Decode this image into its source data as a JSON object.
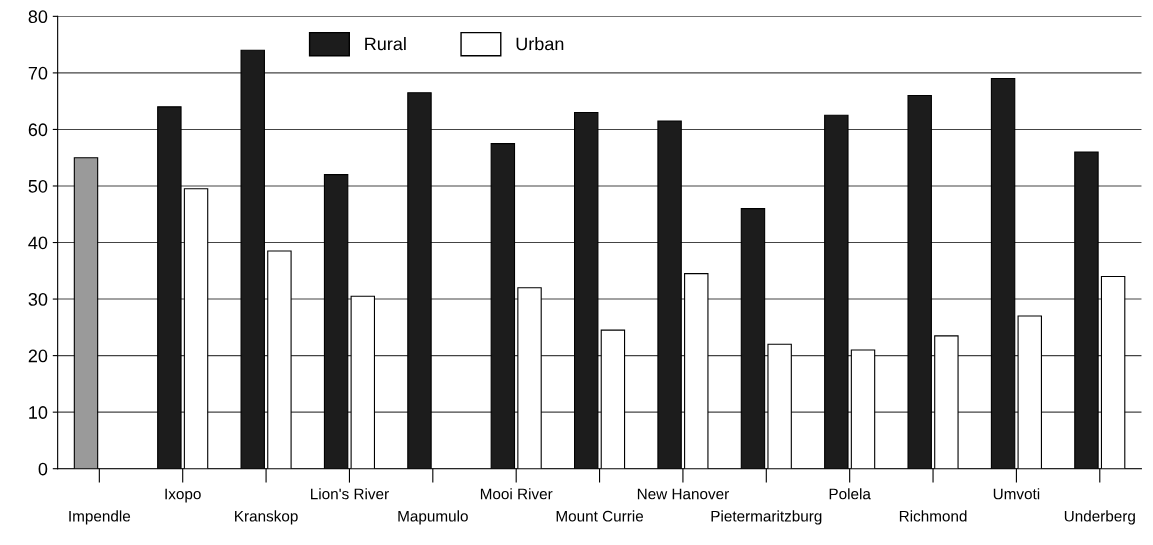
{
  "chart_data": {
    "type": "bar",
    "categories": [
      "Impendle",
      "Ixopo",
      "Kranskop",
      "Lion's River",
      "Mapumulo",
      "Mooi River",
      "Mount Currie",
      "New Hanover",
      "Pietermaritzburg",
      "Polela",
      "Richmond",
      "Umvoti",
      "Underberg"
    ],
    "series": [
      {
        "name": "Rural",
        "color": "#1c1c1c",
        "colors": [
          "#9a9a9a",
          "#1c1c1c",
          "#1c1c1c",
          "#1c1c1c",
          "#1c1c1c",
          "#1c1c1c",
          "#1c1c1c",
          "#1c1c1c",
          "#1c1c1c",
          "#1c1c1c",
          "#1c1c1c",
          "#1c1c1c",
          "#1c1c1c"
        ],
        "values": [
          55,
          64,
          74,
          52,
          66.5,
          57.5,
          63,
          61.5,
          46,
          62.5,
          66,
          69,
          56
        ]
      },
      {
        "name": "Urban",
        "color": "#ffffff",
        "values": [
          null,
          49.5,
          38.5,
          30.5,
          null,
          32,
          24.5,
          34.5,
          22,
          21,
          23.5,
          27,
          34
        ]
      }
    ],
    "ylim": [
      0,
      80
    ],
    "yticks": [
      0,
      10,
      20,
      30,
      40,
      50,
      60,
      70,
      80
    ],
    "grid": "y",
    "legend": "top"
  }
}
